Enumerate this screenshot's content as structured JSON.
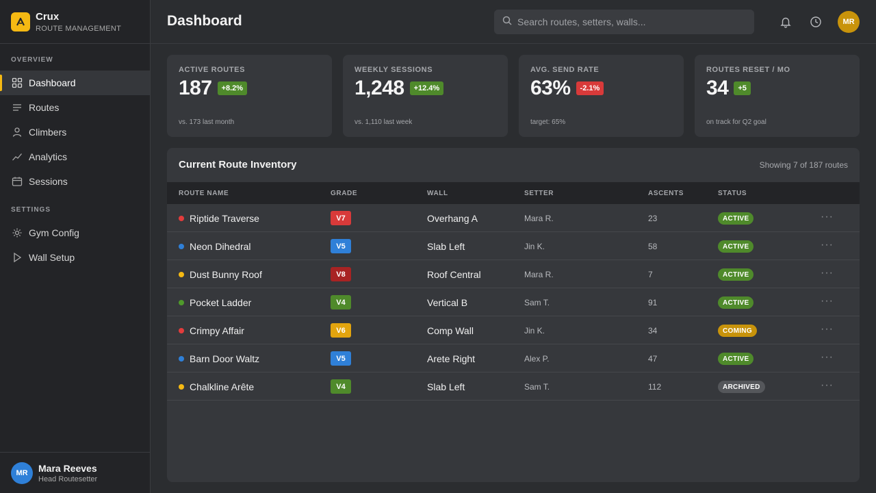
{
  "brand": {
    "name": "Crux",
    "subtitle": "ROUTE MANAGEMENT",
    "logo_icon": "mountain-peak-icon",
    "accent": "#f5b913"
  },
  "sidebar": {
    "sections": [
      {
        "label": "OVERVIEW",
        "items": [
          {
            "label": "Dashboard",
            "icon": "grid-icon",
            "active": true
          },
          {
            "label": "Routes",
            "icon": "list-icon"
          },
          {
            "label": "Climbers",
            "icon": "user-icon"
          },
          {
            "label": "Analytics",
            "icon": "trend-icon"
          },
          {
            "label": "Sessions",
            "icon": "calendar-icon"
          }
        ]
      },
      {
        "label": "SETTINGS",
        "items": [
          {
            "label": "Gym Config",
            "icon": "gear-icon"
          },
          {
            "label": "Wall Setup",
            "icon": "play-icon"
          }
        ]
      }
    ],
    "user": {
      "initials": "MR",
      "name": "Mara Reeves",
      "role": "Head Routesetter"
    }
  },
  "header": {
    "title": "Dashboard",
    "search_placeholder": "Search routes, setters, walls...",
    "avatar_initials": "MR"
  },
  "stats": [
    {
      "label": "ACTIVE ROUTES",
      "value": "187",
      "delta": "+8.2%",
      "trend": "up",
      "note": "vs. 173 last month"
    },
    {
      "label": "WEEKLY SESSIONS",
      "value": "1,248",
      "delta": "+12.4%",
      "trend": "up",
      "note": "vs. 1,110 last week"
    },
    {
      "label": "AVG. SEND RATE",
      "value": "63%",
      "delta": "-2.1%",
      "trend": "down",
      "note": "target: 65%"
    },
    {
      "label": "ROUTES RESET / MO",
      "value": "34",
      "delta": "+5",
      "trend": "up",
      "note": "on track for Q2 goal"
    }
  ],
  "inventory": {
    "title": "Current Route Inventory",
    "meta": "Showing 7 of 187 routes",
    "columns": [
      "ROUTE NAME",
      "GRADE",
      "WALL",
      "SETTER",
      "ASCENTS",
      "STATUS"
    ],
    "rows": [
      {
        "name": "Riptide Traverse",
        "dot": "#e23c3c",
        "grade": "V7",
        "grade_color": "#d83a3a",
        "wall": "Overhang A",
        "setter": "Mara R.",
        "ascents": "23",
        "status": "ACTIVE",
        "status_color": "#4f8a2b"
      },
      {
        "name": "Neon Dihedral",
        "dot": "#2f80d8",
        "grade": "V5",
        "grade_color": "#2f80d8",
        "wall": "Slab Left",
        "setter": "Jin K.",
        "ascents": "58",
        "status": "ACTIVE",
        "status_color": "#4f8a2b"
      },
      {
        "name": "Dust Bunny Roof",
        "dot": "#f5b913",
        "grade": "V8",
        "grade_color": "#a82323",
        "wall": "Roof Central",
        "setter": "Mara R.",
        "ascents": "7",
        "status": "ACTIVE",
        "status_color": "#4f8a2b"
      },
      {
        "name": "Pocket Ladder",
        "dot": "#4f9a2b",
        "grade": "V4",
        "grade_color": "#4f8a2b",
        "wall": "Vertical B",
        "setter": "Sam T.",
        "ascents": "91",
        "status": "ACTIVE",
        "status_color": "#4f8a2b"
      },
      {
        "name": "Crimpy Affair",
        "dot": "#e23c3c",
        "grade": "V6",
        "grade_color": "#e2a40e",
        "wall": "Comp Wall",
        "setter": "Jin K.",
        "ascents": "34",
        "status": "COMING",
        "status_color": "#c8930b"
      },
      {
        "name": "Barn Door Waltz",
        "dot": "#2f80d8",
        "grade": "V5",
        "grade_color": "#2f80d8",
        "wall": "Arete Right",
        "setter": "Alex P.",
        "ascents": "47",
        "status": "ACTIVE",
        "status_color": "#4f8a2b"
      },
      {
        "name": "Chalkline Arête",
        "dot": "#f5b913",
        "grade": "V4",
        "grade_color": "#4f8a2b",
        "wall": "Slab Left",
        "setter": "Sam T.",
        "ascents": "112",
        "status": "ARCHIVED",
        "status_color": "#55575b"
      }
    ]
  }
}
